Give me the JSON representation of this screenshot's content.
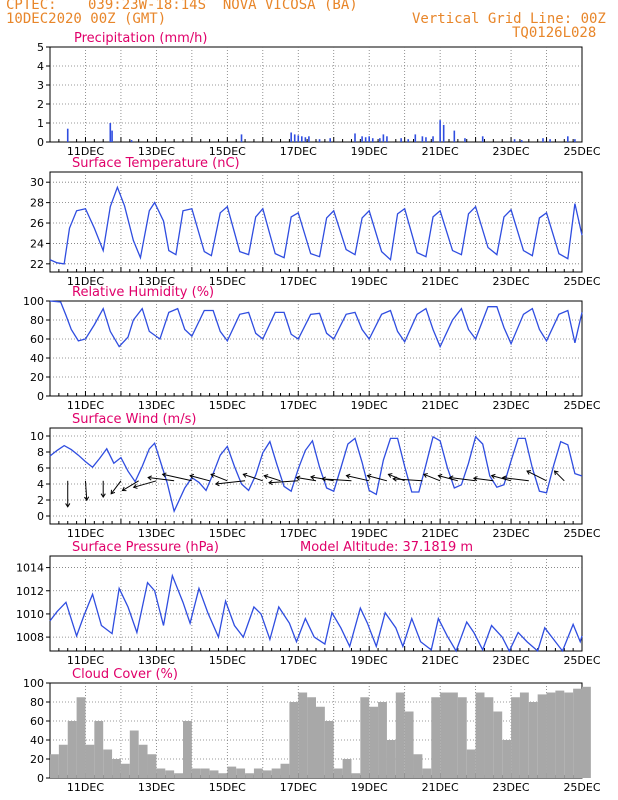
{
  "header": {
    "source": "CPTEC:",
    "location": "039:23W-18:14S  NOVA VICOSA (BA)",
    "init_time": "10DEC2020 00Z (GMT)",
    "grid_note": "Vertical Grid Line: 00Z",
    "run_id": "TQ0126L028"
  },
  "colors": {
    "header": "#e8862a",
    "title": "#e0006a",
    "line": "#2f4de0",
    "precip_bar": "#2f4de0",
    "cloud_bar": "#a8a8a8",
    "grid": "#777777"
  },
  "x_axis": {
    "start_day": 10,
    "end_day": 25,
    "tick_labels": [
      "11DEC",
      "13DEC",
      "15DEC",
      "17DEC",
      "19DEC",
      "21DEC",
      "23DEC",
      "25DEC"
    ]
  },
  "chart_data": [
    {
      "id": "precip",
      "type": "bar",
      "title": "Precipitation  (mm/h)",
      "ylim": [
        0,
        5
      ],
      "yticks": [
        "0",
        "1",
        "2",
        "3",
        "4",
        "5"
      ],
      "grid": true,
      "x": [
        10.5,
        11.7,
        11.75,
        12.3,
        15.4,
        16.8,
        16.9,
        17.0,
        17.1,
        17.2,
        17.3,
        17.6,
        17.9,
        18.6,
        18.8,
        18.9,
        19.0,
        19.1,
        19.3,
        19.4,
        19.5,
        19.9,
        20.1,
        20.3,
        20.5,
        20.6,
        20.8,
        21.0,
        21.1,
        21.4,
        21.7,
        22.2,
        23.1,
        23.3,
        23.9,
        24.1,
        24.6,
        24.8
      ],
      "values": [
        0.7,
        1.0,
        0.6,
        0.1,
        0.4,
        0.5,
        0.4,
        0.35,
        0.3,
        0.25,
        0.3,
        0.15,
        0.2,
        0.45,
        0.3,
        0.25,
        0.3,
        0.2,
        0.2,
        0.4,
        0.3,
        0.2,
        0.15,
        0.4,
        0.3,
        0.25,
        0.3,
        1.15,
        0.9,
        0.6,
        0.2,
        0.3,
        0.15,
        0.1,
        0.2,
        0.15,
        0.3,
        0.15
      ]
    },
    {
      "id": "temp",
      "type": "line",
      "title": "Surface Temperature (nC)",
      "ylim": [
        21.2,
        31
      ],
      "yticks": [
        "22",
        "24",
        "26",
        "28",
        "30"
      ],
      "ytick_values": [
        22,
        24,
        26,
        28,
        30
      ],
      "grid": true,
      "x": [
        10.0,
        10.2,
        10.4,
        10.55,
        10.75,
        11.0,
        11.25,
        11.5,
        11.7,
        11.9,
        12.1,
        12.35,
        12.55,
        12.8,
        12.95,
        13.2,
        13.35,
        13.55,
        13.75,
        14.0,
        14.35,
        14.55,
        14.8,
        15.0,
        15.35,
        15.6,
        15.8,
        16.0,
        16.35,
        16.6,
        16.8,
        17.0,
        17.35,
        17.6,
        17.8,
        18.0,
        18.35,
        18.6,
        18.8,
        19.0,
        19.35,
        19.6,
        19.8,
        20.0,
        20.35,
        20.6,
        20.8,
        21.0,
        21.35,
        21.6,
        21.8,
        22.0,
        22.35,
        22.6,
        22.8,
        23.0,
        23.35,
        23.6,
        23.8,
        24.0,
        24.35,
        24.6,
        24.8,
        25.0
      ],
      "values": [
        22.4,
        22.1,
        22.0,
        25.5,
        27.2,
        27.4,
        25.5,
        23.3,
        27.6,
        29.5,
        27.7,
        24.3,
        22.6,
        27.2,
        28.0,
        26.2,
        23.3,
        22.9,
        27.2,
        27.4,
        23.2,
        22.8,
        27.0,
        27.6,
        23.2,
        22.9,
        26.6,
        27.4,
        23.0,
        22.6,
        26.6,
        27.0,
        23.0,
        22.7,
        26.5,
        27.2,
        23.4,
        22.9,
        26.5,
        27.2,
        23.2,
        22.4,
        26.9,
        27.4,
        23.1,
        22.7,
        26.6,
        27.2,
        23.3,
        22.9,
        26.9,
        27.6,
        23.6,
        22.9,
        26.6,
        27.3,
        23.3,
        22.8,
        26.5,
        27.0,
        23.0,
        22.5,
        27.9,
        24.8
      ]
    },
    {
      "id": "rh",
      "type": "line",
      "title": "Relative Humidity (%)",
      "ylim": [
        0,
        100
      ],
      "yticks": [
        "0",
        "20",
        "40",
        "60",
        "80",
        "100"
      ],
      "ytick_values": [
        0,
        20,
        40,
        60,
        80,
        100
      ],
      "grid": true,
      "x": [
        10.0,
        10.3,
        10.45,
        10.6,
        10.8,
        11.0,
        11.25,
        11.5,
        11.7,
        11.95,
        12.2,
        12.35,
        12.6,
        12.8,
        13.1,
        13.35,
        13.6,
        13.8,
        14.0,
        14.35,
        14.6,
        14.8,
        15.0,
        15.35,
        15.6,
        15.8,
        16.0,
        16.35,
        16.6,
        16.8,
        17.0,
        17.35,
        17.6,
        17.8,
        18.0,
        18.35,
        18.6,
        18.8,
        19.0,
        19.35,
        19.6,
        19.8,
        20.0,
        20.35,
        20.6,
        20.8,
        21.0,
        21.35,
        21.6,
        21.8,
        22.0,
        22.35,
        22.6,
        22.8,
        23.0,
        23.35,
        23.6,
        23.8,
        24.0,
        24.35,
        24.6,
        24.8,
        25.0
      ],
      "values": [
        100,
        99,
        85,
        70,
        58,
        60,
        75,
        92,
        68,
        52,
        62,
        80,
        92,
        68,
        60,
        88,
        92,
        70,
        63,
        90,
        90,
        68,
        58,
        86,
        88,
        66,
        60,
        88,
        88,
        65,
        60,
        86,
        87,
        66,
        60,
        86,
        88,
        70,
        60,
        86,
        90,
        68,
        57,
        86,
        92,
        70,
        52,
        80,
        92,
        70,
        60,
        94,
        94,
        72,
        55,
        86,
        92,
        70,
        58,
        86,
        90,
        56,
        88
      ]
    },
    {
      "id": "wind",
      "type": "line",
      "title": "Surface Wind (m/s)",
      "ylim": [
        -1,
        11
      ],
      "yticks": [
        "0",
        "2",
        "4",
        "6",
        "8",
        "10"
      ],
      "ytick_values": [
        0,
        2,
        4,
        6,
        8,
        10
      ],
      "grid": true,
      "x": [
        10.0,
        10.2,
        10.4,
        10.6,
        10.8,
        11.0,
        11.2,
        11.4,
        11.6,
        11.8,
        12.0,
        12.2,
        12.4,
        12.6,
        12.8,
        12.95,
        13.1,
        13.3,
        13.5,
        13.8,
        14.0,
        14.2,
        14.4,
        14.6,
        14.8,
        15.0,
        15.2,
        15.4,
        15.6,
        15.8,
        16.0,
        16.2,
        16.4,
        16.6,
        16.8,
        17.0,
        17.2,
        17.4,
        17.6,
        17.8,
        18.0,
        18.2,
        18.4,
        18.6,
        18.8,
        19.0,
        19.2,
        19.4,
        19.6,
        19.8,
        20.0,
        20.2,
        20.4,
        20.6,
        20.8,
        21.0,
        21.2,
        21.4,
        21.6,
        21.8,
        22.0,
        22.2,
        22.4,
        22.6,
        22.8,
        23.0,
        23.2,
        23.4,
        23.6,
        23.8,
        24.0,
        24.2,
        24.4,
        24.6,
        24.8,
        25.0
      ],
      "values": [
        7.5,
        8.2,
        8.8,
        8.3,
        7.6,
        6.8,
        6.1,
        7.2,
        8.4,
        6.6,
        7.3,
        5.6,
        4.3,
        6.2,
        8.4,
        9.1,
        7.0,
        4.2,
        0.6,
        3.5,
        4.8,
        4.2,
        3.2,
        5.3,
        7.6,
        8.7,
        6.2,
        4.0,
        3.2,
        5.1,
        7.9,
        9.3,
        6.4,
        3.7,
        3.1,
        5.9,
        8.2,
        9.4,
        6.1,
        3.5,
        3.1,
        6.0,
        9.0,
        9.7,
        6.7,
        3.2,
        2.7,
        7.0,
        9.7,
        9.7,
        6.2,
        3.0,
        3.0,
        6.4,
        9.9,
        9.4,
        6.1,
        3.5,
        3.9,
        6.6,
        9.9,
        9.0,
        5.0,
        3.6,
        3.9,
        6.9,
        9.7,
        9.7,
        6.0,
        3.1,
        2.9,
        6.3,
        9.3,
        8.9,
        5.3,
        5.0
      ]
    },
    {
      "id": "pressure",
      "type": "line",
      "title": "Surface Pressure (hPa)",
      "subtitle": "Model Altitude: 37.1819 m",
      "ylim": [
        1006.8,
        1015
      ],
      "yticks": [
        "1008",
        "1010",
        "1012",
        "1014"
      ],
      "ytick_values": [
        1008,
        1010,
        1012,
        1014
      ],
      "grid": true,
      "x": [
        10.0,
        10.2,
        10.45,
        10.75,
        10.95,
        11.2,
        11.45,
        11.75,
        11.95,
        12.2,
        12.45,
        12.75,
        12.95,
        13.2,
        13.45,
        13.75,
        13.95,
        14.2,
        14.45,
        14.75,
        14.95,
        15.2,
        15.45,
        15.75,
        15.95,
        16.2,
        16.45,
        16.75,
        16.95,
        17.2,
        17.45,
        17.75,
        17.95,
        18.2,
        18.45,
        18.75,
        18.95,
        19.2,
        19.45,
        19.75,
        19.95,
        20.2,
        20.45,
        20.75,
        20.95,
        21.2,
        21.45,
        21.75,
        21.95,
        22.2,
        22.45,
        22.75,
        22.95,
        23.2,
        23.45,
        23.75,
        23.95,
        24.2,
        24.45,
        24.75,
        24.95,
        25.0
      ],
      "values": [
        1009.4,
        1010.2,
        1011.0,
        1008.1,
        1009.8,
        1011.7,
        1009.0,
        1008.3,
        1012.2,
        1010.6,
        1008.4,
        1012.7,
        1012.0,
        1009.0,
        1013.3,
        1011.0,
        1009.2,
        1012.2,
        1010.1,
        1008.0,
        1011.1,
        1009.0,
        1008.0,
        1010.6,
        1010.0,
        1007.8,
        1010.6,
        1009.2,
        1007.6,
        1009.6,
        1008.0,
        1007.4,
        1010.1,
        1008.8,
        1007.2,
        1010.5,
        1009.2,
        1007.2,
        1010.1,
        1008.8,
        1007.2,
        1009.6,
        1007.6,
        1006.9,
        1009.6,
        1008.1,
        1006.8,
        1009.3,
        1008.4,
        1006.9,
        1009.0,
        1008.0,
        1006.8,
        1008.4,
        1007.6,
        1006.8,
        1008.8,
        1007.8,
        1006.7,
        1009.1,
        1007.6,
        1008.1
      ]
    },
    {
      "id": "cloud",
      "type": "bar",
      "title": "Cloud Cover (%)",
      "ylim": [
        0,
        100
      ],
      "yticks": [
        "0",
        "20",
        "40",
        "60",
        "80",
        "100"
      ],
      "ytick_values": [
        0,
        20,
        40,
        60,
        80,
        100
      ],
      "grid": true,
      "x": [
        10.0,
        10.25,
        10.5,
        10.75,
        11.0,
        11.25,
        11.5,
        11.75,
        12.0,
        12.25,
        12.5,
        12.75,
        13.0,
        13.25,
        13.5,
        13.75,
        14.0,
        14.25,
        14.5,
        14.75,
        15.0,
        15.25,
        15.5,
        15.75,
        16.0,
        16.25,
        16.5,
        16.75,
        17.0,
        17.25,
        17.5,
        17.75,
        18.0,
        18.25,
        18.5,
        18.75,
        19.0,
        19.25,
        19.5,
        19.75,
        20.0,
        20.25,
        20.5,
        20.75,
        21.0,
        21.25,
        21.5,
        21.75,
        22.0,
        22.25,
        22.5,
        22.75,
        23.0,
        23.25,
        23.5,
        23.75,
        24.0,
        24.25,
        24.5,
        24.75,
        25.0
      ],
      "values": [
        25,
        35,
        60,
        85,
        35,
        60,
        30,
        20,
        15,
        50,
        35,
        25,
        10,
        8,
        5,
        60,
        10,
        10,
        8,
        5,
        12,
        10,
        5,
        10,
        8,
        10,
        15,
        80,
        90,
        85,
        75,
        60,
        10,
        20,
        5,
        85,
        75,
        80,
        40,
        90,
        70,
        25,
        10,
        85,
        90,
        90,
        85,
        30,
        90,
        85,
        70,
        40,
        85,
        90,
        80,
        88,
        90,
        92,
        90,
        94,
        96
      ]
    }
  ],
  "wind_vectors": {
    "x": [
      10.5,
      11.0,
      11.5,
      12.0,
      12.5,
      13.0,
      13.5,
      14.0,
      14.5,
      15.0,
      15.5,
      16.0,
      16.5,
      17.0,
      17.5,
      18.0,
      18.5,
      19.0,
      19.5,
      20.0,
      20.5,
      21.0,
      21.5,
      22.0,
      22.5,
      23.0,
      23.5,
      24.0,
      24.5
    ],
    "u": [
      0.0,
      0.2,
      0.0,
      -1.5,
      -2.5,
      -3.5,
      -4.0,
      -4.5,
      -3.0,
      -2.5,
      -4.5,
      -3.0,
      -2.5,
      -4.5,
      -3.0,
      -3.5,
      -4.5,
      -3.5,
      -3.0,
      -2.5,
      -4.5,
      -2.5,
      -3.0,
      -4.0,
      -3.0,
      -3.0,
      -4.0,
      -3.0,
      -1.5
    ],
    "v": [
      -4.0,
      -3.0,
      -2.5,
      -2.0,
      -1.5,
      -1.0,
      0.5,
      1.0,
      0.8,
      1.0,
      -0.5,
      1.0,
      0.8,
      -0.3,
      0.5,
      0.6,
      0.3,
      0.8,
      0.8,
      1.0,
      0.3,
      1.0,
      0.8,
      0.5,
      0.4,
      0.8,
      0.5,
      1.5,
      1.5
    ]
  }
}
